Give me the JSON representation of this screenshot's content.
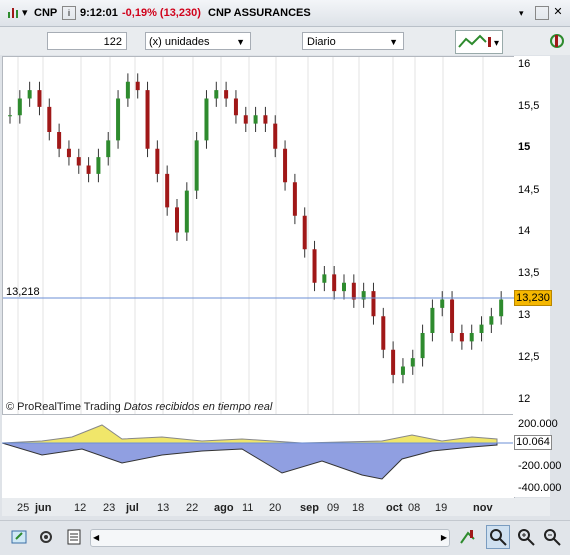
{
  "window": {
    "symbol": "CNP",
    "time": "9:12:01",
    "change": "-0,19% (13,230)",
    "name": "CNP ASSURANCES",
    "change_color": "#d0021b"
  },
  "toolbar": {
    "units_value": "122",
    "units_label": "(x) unidades",
    "period": "Diario"
  },
  "price_axis": {
    "labels": [
      "16",
      "15,5",
      "15",
      "14,5",
      "14",
      "13,5",
      "13",
      "12,5",
      "12"
    ],
    "current_price": "13,230",
    "reference_line": "13,218"
  },
  "indicator_axis": {
    "labels": [
      "200.000",
      "-200.000",
      "-400.000"
    ],
    "current_value": "10.064"
  },
  "x_axis": {
    "labels": [
      "25",
      "jun",
      "12",
      "23",
      "jul",
      "13",
      "22",
      "ago",
      "11",
      "20",
      "sep",
      "09",
      "18",
      "oct",
      "08",
      "19",
      "nov"
    ]
  },
  "credit": {
    "source": "© ProRealTime Trading",
    "status": "Datos recibidos en tiempo real"
  },
  "colors": {
    "up_candle": "#2e8b2e",
    "down_candle": "#a01818",
    "indicator_positive": "#f0e66a",
    "indicator_negative": "#3550c8",
    "price_tag": "#f5b700"
  },
  "icons": [
    "window-icon",
    "chart-type-icon",
    "settings-icon",
    "cursor-icon",
    "zoom-in-icon",
    "zoom-out-icon"
  ]
}
